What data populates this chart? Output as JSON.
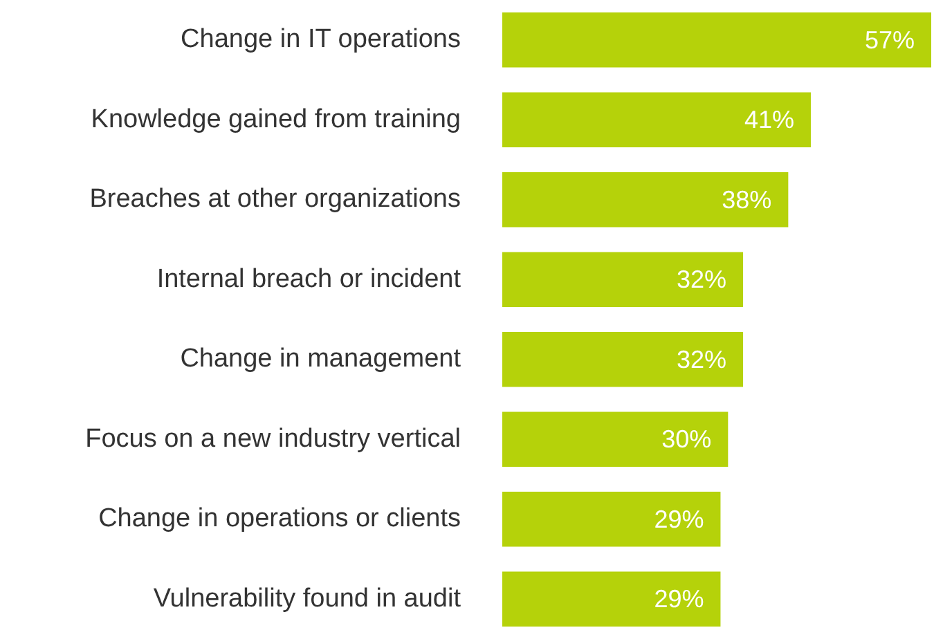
{
  "chart_data": {
    "type": "bar",
    "orientation": "horizontal",
    "categories": [
      "Change in IT operations",
      "Knowledge gained from training",
      "Breaches at other organizations",
      "Internal breach or incident",
      "Change in management",
      "Focus on a new industry vertical",
      "Change in operations or clients",
      "Vulnerability found in audit"
    ],
    "values": [
      57,
      41,
      38,
      32,
      32,
      30,
      29,
      29
    ],
    "color": "#b5d20a",
    "value_labels": [
      "57%",
      "41%",
      "38%",
      "32%",
      "32%",
      "30%",
      "29%",
      "29%"
    ]
  }
}
